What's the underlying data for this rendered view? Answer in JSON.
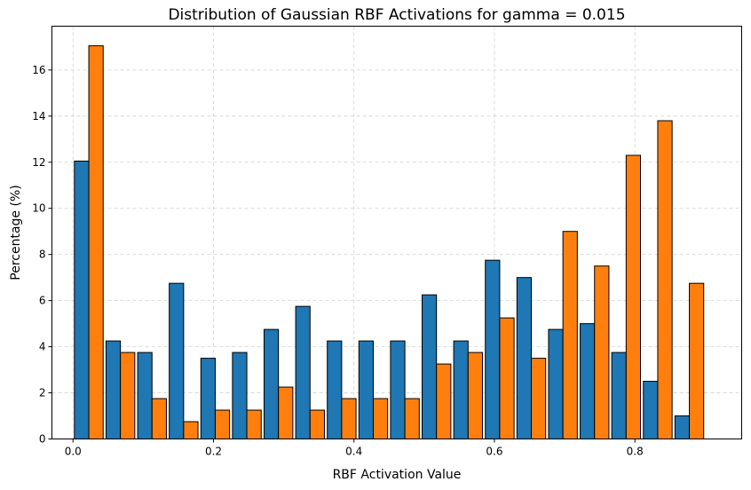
{
  "chart_data": {
    "type": "bar",
    "title": "Distribution of Gaussian RBF Activations for gamma = 0.015",
    "xlabel": "RBF Activation Value",
    "ylabel": "Percentage (%)",
    "xlim": [
      -0.03,
      0.952
    ],
    "ylim": [
      0,
      17.9
    ],
    "xticks": [
      0.0,
      0.2,
      0.4,
      0.6,
      0.8
    ],
    "xtick_labels": [
      "0.0",
      "0.2",
      "0.4",
      "0.6",
      "0.8"
    ],
    "yticks": [
      0,
      2,
      4,
      6,
      8,
      10,
      12,
      14,
      16
    ],
    "ytick_labels": [
      "0",
      "2",
      "4",
      "6",
      "8",
      "10",
      "12",
      "14",
      "16"
    ],
    "grid": true,
    "bin_edges": [
      0.0,
      0.045,
      0.09,
      0.135,
      0.18,
      0.225,
      0.27,
      0.315,
      0.36,
      0.405,
      0.45,
      0.495,
      0.54,
      0.585,
      0.63,
      0.675,
      0.72,
      0.765,
      0.81,
      0.855,
      0.9
    ],
    "series": [
      {
        "color": "#1f77b4",
        "values": [
          12.05,
          4.25,
          3.75,
          6.75,
          3.5,
          3.75,
          4.75,
          5.75,
          4.25,
          4.25,
          4.25,
          6.25,
          4.25,
          7.75,
          7.0,
          4.75,
          5.0,
          3.75,
          2.5,
          1.0
        ]
      },
      {
        "color": "#ff7f0e",
        "values": [
          17.05,
          3.75,
          1.75,
          0.75,
          1.25,
          1.25,
          2.25,
          1.25,
          1.75,
          1.75,
          1.75,
          3.25,
          3.75,
          5.25,
          3.5,
          9.0,
          7.5,
          12.3,
          13.8,
          6.75
        ]
      }
    ]
  }
}
